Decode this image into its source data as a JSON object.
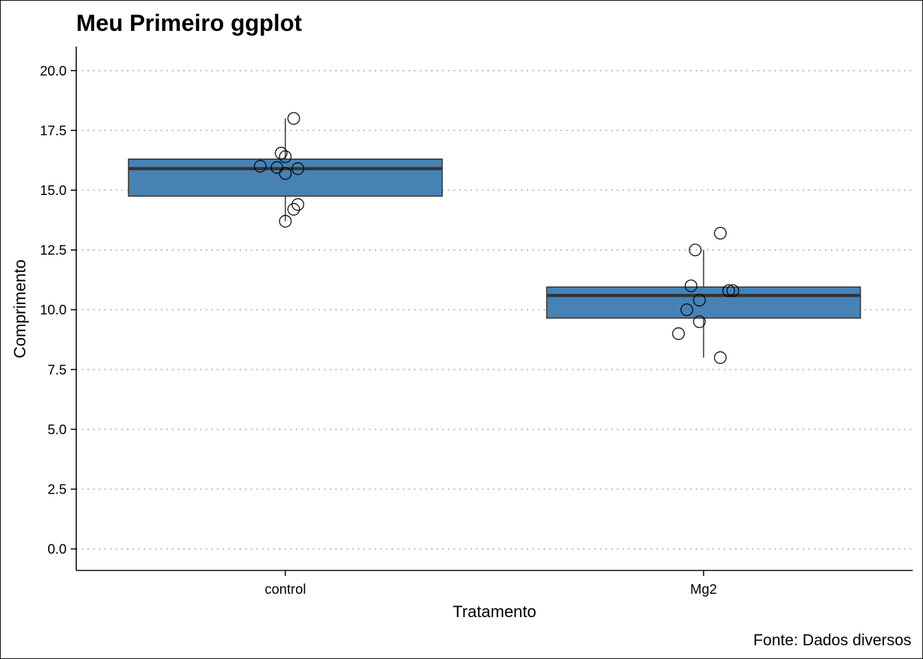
{
  "chart_data": {
    "type": "boxplot",
    "title": "Meu Primeiro ggplot",
    "xlabel": "Tratamento",
    "ylabel": "Comprimento",
    "caption": "Fonte: Dados diversos",
    "categories": [
      "control",
      "Mg2"
    ],
    "ylim": [
      -0.9,
      21.0
    ],
    "yticks": [
      0.0,
      2.5,
      5.0,
      7.5,
      10.0,
      12.5,
      15.0,
      17.5,
      20.0
    ],
    "ytick_labels": [
      "0.0",
      "2.5",
      "5.0",
      "7.5",
      "10.0",
      "12.5",
      "15.0",
      "17.5",
      "20.0"
    ],
    "grid": {
      "horizontal": true,
      "style": "dotted",
      "vertical": false
    },
    "box_fill": "#4682B4",
    "box_outline": "#333333",
    "boxes": [
      {
        "category": "control",
        "whisker_low": 13.7,
        "q1": 14.75,
        "median": 15.9,
        "q3": 16.3,
        "whisker_high": 18.0
      },
      {
        "category": "Mg2",
        "whisker_low": 8.0,
        "q1": 9.65,
        "median": 10.6,
        "q3": 10.95,
        "whisker_high": 12.5
      }
    ],
    "points": [
      {
        "category": "control",
        "jitter": 0.02,
        "y": 18.0
      },
      {
        "category": "control",
        "jitter": -0.01,
        "y": 16.55
      },
      {
        "category": "control",
        "jitter": 0.0,
        "y": 16.4
      },
      {
        "category": "control",
        "jitter": -0.06,
        "y": 16.0
      },
      {
        "category": "control",
        "jitter": -0.02,
        "y": 15.95
      },
      {
        "category": "control",
        "jitter": 0.03,
        "y": 15.9
      },
      {
        "category": "control",
        "jitter": 0.0,
        "y": 15.7
      },
      {
        "category": "control",
        "jitter": 0.03,
        "y": 14.4
      },
      {
        "category": "control",
        "jitter": 0.02,
        "y": 14.2
      },
      {
        "category": "control",
        "jitter": 0.0,
        "y": 13.7
      },
      {
        "category": "Mg2",
        "jitter": 0.04,
        "y": 13.2
      },
      {
        "category": "Mg2",
        "jitter": -0.02,
        "y": 12.5
      },
      {
        "category": "Mg2",
        "jitter": -0.03,
        "y": 11.0
      },
      {
        "category": "Mg2",
        "jitter": 0.06,
        "y": 10.8
      },
      {
        "category": "Mg2",
        "jitter": 0.07,
        "y": 10.8
      },
      {
        "category": "Mg2",
        "jitter": -0.01,
        "y": 10.4
      },
      {
        "category": "Mg2",
        "jitter": -0.04,
        "y": 10.0
      },
      {
        "category": "Mg2",
        "jitter": -0.01,
        "y": 9.5
      },
      {
        "category": "Mg2",
        "jitter": -0.06,
        "y": 9.0
      },
      {
        "category": "Mg2",
        "jitter": 0.04,
        "y": 8.0
      }
    ]
  }
}
